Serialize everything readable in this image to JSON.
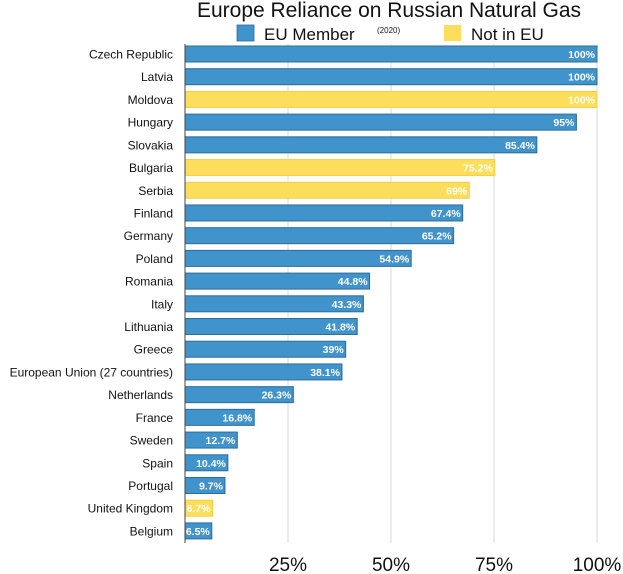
{
  "chart_data": {
    "type": "bar",
    "orientation": "horizontal",
    "title": "Europe Reliance on Russian Natural Gas",
    "subtitle": "(2020)",
    "legend": [
      {
        "name": "EU Member",
        "color": "#4193cb"
      },
      {
        "name": "Not in EU",
        "color": "#fddd5c"
      }
    ],
    "legend_placement": "top",
    "xlim": [
      0,
      100
    ],
    "x_ticks": [
      25,
      50,
      75,
      100
    ],
    "x_tick_labels": [
      "25%",
      "50%",
      "75%",
      "100%"
    ],
    "grid": true,
    "categories": [
      "Czech Republic",
      "Latvia",
      "Moldova",
      "Hungary",
      "Slovakia",
      "Bulgaria",
      "Serbia",
      "Finland",
      "Germany",
      "Poland",
      "Romania",
      "Italy",
      "Lithuania",
      "Greece",
      "European Union (27 countries)",
      "Netherlands",
      "France",
      "Sweden",
      "Spain",
      "Portugal",
      "United Kingdom",
      "Belgium"
    ],
    "values": [
      100,
      100,
      100,
      95,
      85.4,
      75.2,
      69,
      67.4,
      65.2,
      54.9,
      44.8,
      43.3,
      41.8,
      39,
      38.1,
      26.3,
      16.8,
      12.7,
      10.4,
      9.7,
      6.7,
      6.5
    ],
    "data_labels": [
      "100%",
      "100%",
      "100%",
      "95%",
      "85.4%",
      "75.2%",
      "69%",
      "67.4%",
      "65.2%",
      "54.9%",
      "44.8%",
      "43.3%",
      "41.8%",
      "39%",
      "38.1%",
      "26.3%",
      "16.8%",
      "12.7%",
      "10.4%",
      "9.7%",
      "6.7%",
      "6.5%"
    ],
    "groups": [
      "EU Member",
      "EU Member",
      "Not in EU",
      "EU Member",
      "EU Member",
      "Not in EU",
      "Not in EU",
      "EU Member",
      "EU Member",
      "EU Member",
      "EU Member",
      "EU Member",
      "EU Member",
      "EU Member",
      "EU Member",
      "EU Member",
      "EU Member",
      "EU Member",
      "EU Member",
      "EU Member",
      "Not in EU",
      "EU Member"
    ]
  }
}
